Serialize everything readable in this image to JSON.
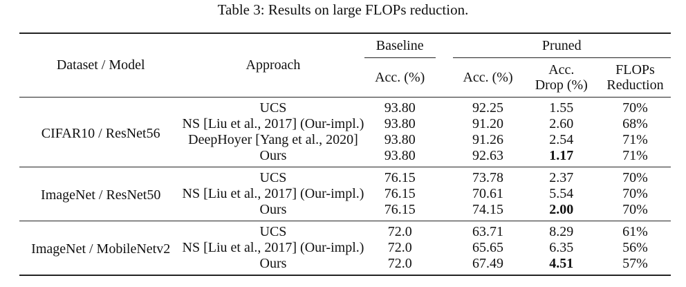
{
  "caption": "Table 3: Results on large FLOPs reduction.",
  "header": {
    "dataset_model": "Dataset / Model",
    "approach": "Approach",
    "baseline": "Baseline",
    "pruned": "Pruned",
    "baseline_acc": "Acc. (%)",
    "pruned_acc": "Acc. (%)",
    "acc_drop_line1": "Acc.",
    "acc_drop_line2": "Drop (%)",
    "flops_line1": "FLOPs",
    "flops_line2": "Reduction"
  },
  "groups": [
    {
      "dataset": "CIFAR10 / ResNet56",
      "rows": [
        {
          "approach": "UCS",
          "baseline": "93.80",
          "pruned": "92.25",
          "drop": "1.55",
          "flops": "70%"
        },
        {
          "approach": "NS [Liu et al., 2017] (Our-impl.)",
          "baseline": "93.80",
          "pruned": "91.20",
          "drop": "2.60",
          "flops": "68%"
        },
        {
          "approach": "DeepHoyer [Yang et al., 2020]",
          "baseline": "93.80",
          "pruned": "91.26",
          "drop": "2.54",
          "flops": "71%"
        },
        {
          "approach": "Ours",
          "baseline": "93.80",
          "pruned": "92.63",
          "drop": "1.17",
          "flops": "71%"
        }
      ]
    },
    {
      "dataset": "ImageNet / ResNet50",
      "rows": [
        {
          "approach": "UCS",
          "baseline": "76.15",
          "pruned": "73.78",
          "drop": "2.37",
          "flops": "70%"
        },
        {
          "approach": "NS [Liu et al., 2017] (Our-impl.)",
          "baseline": "76.15",
          "pruned": "70.61",
          "drop": "5.54",
          "flops": "70%"
        },
        {
          "approach": "Ours",
          "baseline": "76.15",
          "pruned": "74.15",
          "drop": "2.00",
          "flops": "70%"
        }
      ]
    },
    {
      "dataset": "ImageNet / MobileNetv2",
      "rows": [
        {
          "approach": "UCS",
          "baseline": "72.0",
          "pruned": "63.71",
          "drop": "8.29",
          "flops": "61%"
        },
        {
          "approach": "NS [Liu et al., 2017] (Our-impl.)",
          "baseline": "72.0",
          "pruned": "65.65",
          "drop": "6.35",
          "flops": "56%"
        },
        {
          "approach": "Ours",
          "baseline": "72.0",
          "pruned": "67.49",
          "drop": "4.51",
          "flops": "57%"
        }
      ]
    }
  ]
}
